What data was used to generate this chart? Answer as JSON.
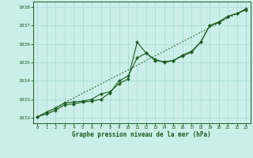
{
  "title": "Graphe pression niveau de la mer (hPa)",
  "background_color": "#cceee8",
  "grid_color": "#aaddda",
  "line_color": "#1a5c1a",
  "marker_color": "#1a5c1a",
  "xlim": [
    -0.5,
    23.5
  ],
  "ylim": [
    1031.7,
    1038.3
  ],
  "xticks": [
    0,
    1,
    2,
    3,
    4,
    5,
    6,
    7,
    8,
    9,
    10,
    11,
    12,
    13,
    14,
    15,
    16,
    17,
    18,
    19,
    20,
    21,
    22,
    23
  ],
  "yticks": [
    1032,
    1033,
    1034,
    1035,
    1036,
    1037,
    1038
  ],
  "series1_x": [
    0,
    1,
    2,
    3,
    4,
    5,
    6,
    7,
    8,
    9,
    10,
    11,
    12,
    13,
    14,
    15,
    16,
    17,
    18,
    19,
    20,
    21,
    22,
    23
  ],
  "series1_y": [
    1032.05,
    1032.3,
    1032.5,
    1032.8,
    1032.85,
    1032.9,
    1033.0,
    1033.3,
    1033.4,
    1033.85,
    1034.1,
    1036.1,
    1035.5,
    1035.1,
    1035.05,
    1035.1,
    1035.35,
    1035.55,
    1036.1,
    1037.0,
    1037.2,
    1037.5,
    1037.65,
    1037.85
  ],
  "series2_x": [
    0,
    1,
    2,
    3,
    4,
    5,
    6,
    7,
    8,
    9,
    10,
    11,
    12,
    13,
    14,
    15,
    16,
    17,
    18,
    19,
    20,
    21,
    22,
    23
  ],
  "series2_y": [
    1032.05,
    1032.2,
    1032.4,
    1032.7,
    1032.75,
    1032.85,
    1032.9,
    1033.0,
    1033.35,
    1034.0,
    1034.25,
    1035.25,
    1035.5,
    1035.15,
    1035.0,
    1035.1,
    1035.4,
    1035.6,
    1036.1,
    1037.0,
    1037.15,
    1037.5,
    1037.65,
    1037.9
  ],
  "series3_x": [
    0,
    23
  ],
  "series3_y": [
    1032.05,
    1037.9
  ]
}
